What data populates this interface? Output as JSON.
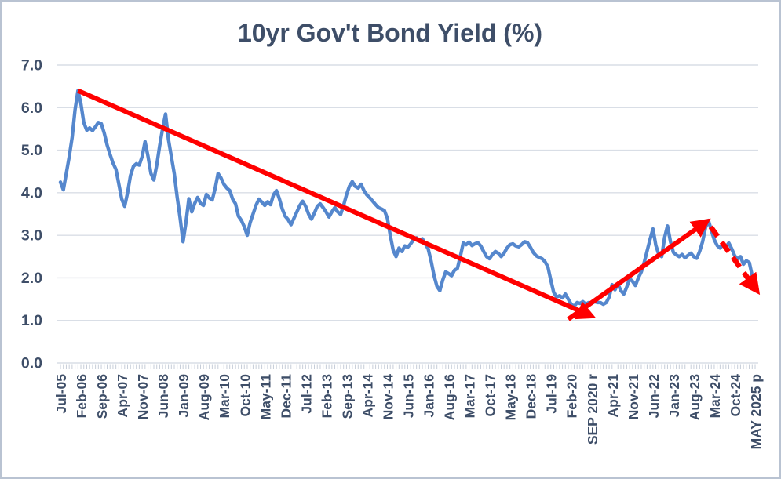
{
  "colors": {
    "line": "#5587CD",
    "arrow": "#FF0000",
    "grid": "#D9DEE6",
    "minor_tick": "#C6CDD8",
    "text": "#3E4E68",
    "frame_border": "#B9C3D2",
    "background": "#FFFFFF"
  },
  "chart_data": {
    "type": "line",
    "title": "10yr Gov't Bond Yield (%)",
    "xlabel": "",
    "ylabel": "",
    "ylim": [
      0,
      7
    ],
    "y_tick_interval": 1.0,
    "y_ticks": [
      "7.0",
      "6.0",
      "5.0",
      "4.0",
      "3.0",
      "2.0",
      "1.0",
      "0.0"
    ],
    "grid": "horizontal",
    "legend": "none",
    "x_tick_every": 7,
    "x_tick_labels": [
      "Jul-05",
      "Feb-06",
      "Sep-06",
      "Apr-07",
      "Nov-07",
      "Jun-08",
      "Jan-09",
      "Aug-09",
      "Mar-10",
      "Oct-10",
      "May-11",
      "Dec-11",
      "Jul-12",
      "Feb-13",
      "Sep-13",
      "Apr-14",
      "Nov-14",
      "Jun-15",
      "Jan-16",
      "Aug-16",
      "Mar-17",
      "Oct-17",
      "May-18",
      "Dec-18",
      "Jul-19",
      "Feb-20",
      "SEP 2020 r",
      "Apr-21",
      "Nov-21",
      "Jun-22",
      "Jan-23",
      "Aug-23",
      "Mar-24",
      "Oct-24",
      "MAY 2025 p"
    ],
    "series": [
      {
        "name": "10yr Gov't Bond Yield (%)",
        "frequency": "monthly",
        "start": "Jul-2005",
        "end": "May-2025",
        "color": "#5587CD",
        "values": [
          4.25,
          4.07,
          4.45,
          4.85,
          5.3,
          5.95,
          6.4,
          6.1,
          5.65,
          5.47,
          5.52,
          5.46,
          5.55,
          5.65,
          5.62,
          5.4,
          5.12,
          4.9,
          4.7,
          4.55,
          4.2,
          3.85,
          3.68,
          4.0,
          4.4,
          4.62,
          4.68,
          4.65,
          4.85,
          5.2,
          4.85,
          4.45,
          4.3,
          4.65,
          5.1,
          5.5,
          5.85,
          5.25,
          4.85,
          4.45,
          3.9,
          3.4,
          2.85,
          3.3,
          3.86,
          3.55,
          3.75,
          3.89,
          3.75,
          3.7,
          3.96,
          3.88,
          3.83,
          4.1,
          4.45,
          4.35,
          4.2,
          4.11,
          4.05,
          3.85,
          3.74,
          3.45,
          3.35,
          3.2,
          3.0,
          3.3,
          3.5,
          3.7,
          3.85,
          3.78,
          3.7,
          3.79,
          3.72,
          3.95,
          4.05,
          3.86,
          3.62,
          3.45,
          3.37,
          3.25,
          3.4,
          3.55,
          3.7,
          3.8,
          3.68,
          3.5,
          3.38,
          3.52,
          3.68,
          3.74,
          3.65,
          3.55,
          3.43,
          3.55,
          3.65,
          3.55,
          3.49,
          3.7,
          3.95,
          4.15,
          4.26,
          4.15,
          4.11,
          4.2,
          4.05,
          3.95,
          3.88,
          3.8,
          3.72,
          3.65,
          3.62,
          3.58,
          3.4,
          3.0,
          2.65,
          2.5,
          2.7,
          2.62,
          2.75,
          2.72,
          2.8,
          2.9,
          2.94,
          2.88,
          2.92,
          2.8,
          2.68,
          2.4,
          2.05,
          1.8,
          1.7,
          1.95,
          2.14,
          2.1,
          2.05,
          2.18,
          2.22,
          2.5,
          2.82,
          2.78,
          2.84,
          2.76,
          2.8,
          2.83,
          2.75,
          2.62,
          2.5,
          2.45,
          2.55,
          2.62,
          2.58,
          2.5,
          2.58,
          2.7,
          2.78,
          2.8,
          2.75,
          2.73,
          2.78,
          2.85,
          2.83,
          2.72,
          2.6,
          2.52,
          2.48,
          2.45,
          2.38,
          2.26,
          1.95,
          1.66,
          1.55,
          1.58,
          1.53,
          1.62,
          1.5,
          1.38,
          1.33,
          1.42,
          1.4,
          1.44,
          1.38,
          1.42,
          1.4,
          1.44,
          1.42,
          1.42,
          1.38,
          1.42,
          1.55,
          1.84,
          1.72,
          1.86,
          1.7,
          1.62,
          1.78,
          1.98,
          1.92,
          1.82,
          2.0,
          2.14,
          2.36,
          2.63,
          2.9,
          3.15,
          2.76,
          2.55,
          2.5,
          2.95,
          3.22,
          2.85,
          2.6,
          2.54,
          2.5,
          2.55,
          2.47,
          2.53,
          2.58,
          2.5,
          2.46,
          2.62,
          2.85,
          3.18,
          3.35,
          3.12,
          2.9,
          2.76,
          2.7,
          2.78,
          2.72,
          2.82,
          2.68,
          2.52,
          2.44,
          2.5,
          2.32,
          2.4,
          2.36,
          2.05,
          1.87
        ]
      }
    ],
    "annotations": [
      {
        "type": "arrow",
        "style": "solid",
        "color": "#FF0000",
        "from": {
          "x_month_index": 6,
          "y": 6.4
        },
        "to": {
          "x_month_index": 182,
          "y": 1.1
        }
      },
      {
        "type": "arrow",
        "style": "solid",
        "color": "#FF0000",
        "from": {
          "x_month_index": 174,
          "y": 1.03
        },
        "to": {
          "x_month_index": 221.5,
          "y": 3.33
        }
      },
      {
        "type": "arrow",
        "style": "dashed",
        "color": "#FF0000",
        "from": {
          "x_month_index": 222.8,
          "y": 3.2
        },
        "to": {
          "x_month_index": 238.6,
          "y": 1.7
        }
      }
    ]
  }
}
